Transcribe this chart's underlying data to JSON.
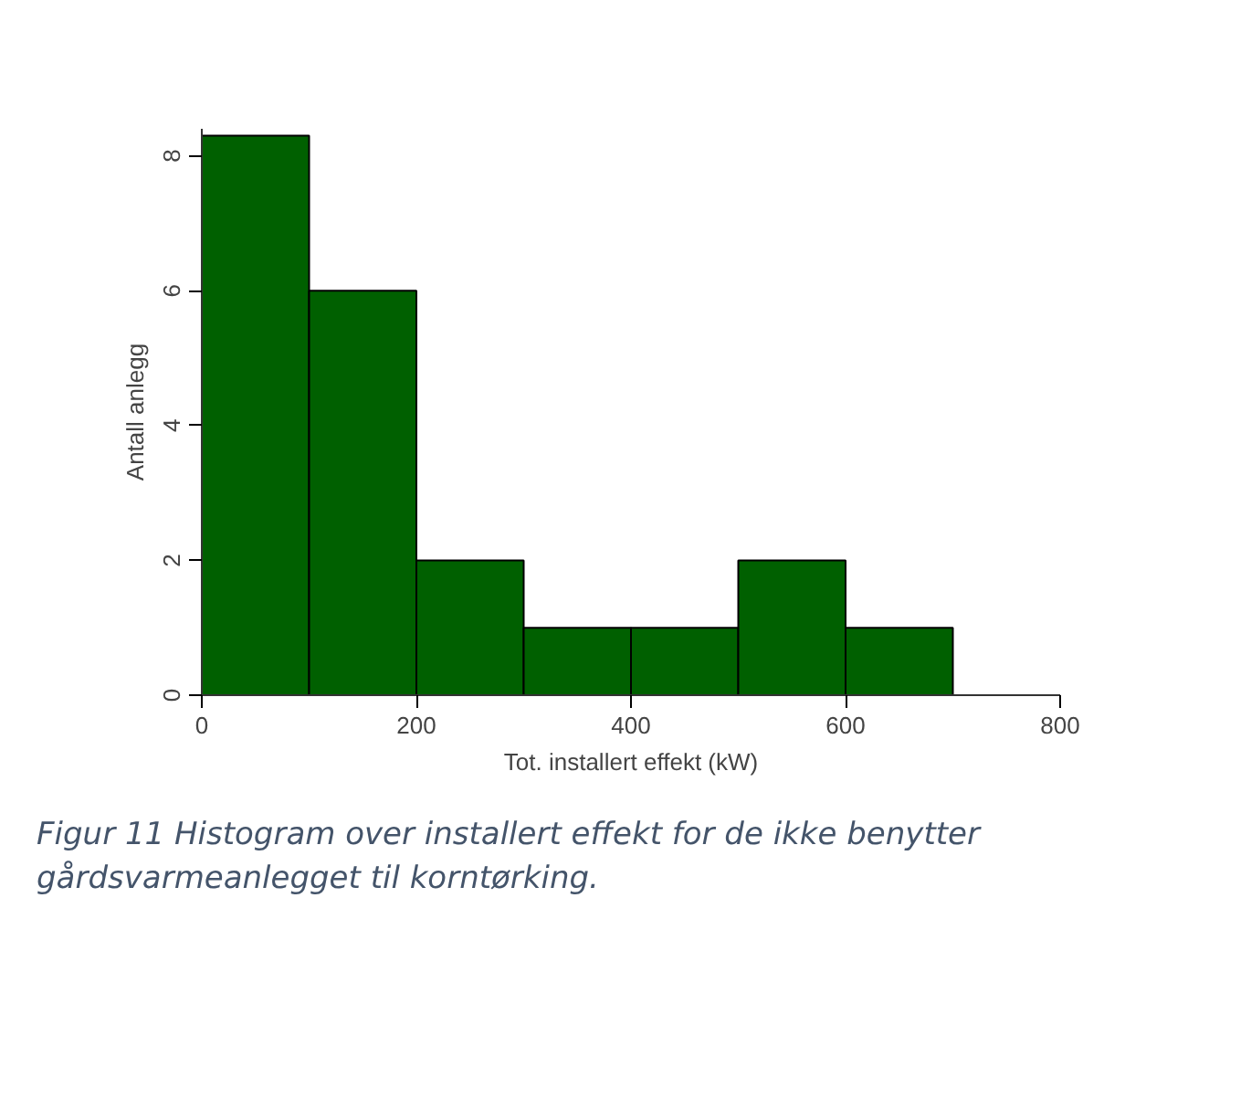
{
  "chart_data": {
    "type": "histogram",
    "xlabel": "Tot. installert effekt (kW)",
    "ylabel": "Antall anlegg",
    "bins": [
      0,
      100,
      200,
      300,
      400,
      500,
      600,
      700
    ],
    "values": [
      8.3,
      6,
      2,
      1,
      1,
      2,
      1
    ],
    "color": "#006000",
    "xlim": [
      0,
      800
    ],
    "xticks": [
      0,
      200,
      400,
      600,
      800
    ],
    "ylim": [
      0,
      8.4
    ],
    "yticks": [
      0,
      2,
      4,
      6,
      8
    ],
    "grid": false,
    "annotations": [
      "Figur 11 Histogram over installert effekt for de ikke benytter gårdsvarmeanlegget til korntørking."
    ]
  }
}
